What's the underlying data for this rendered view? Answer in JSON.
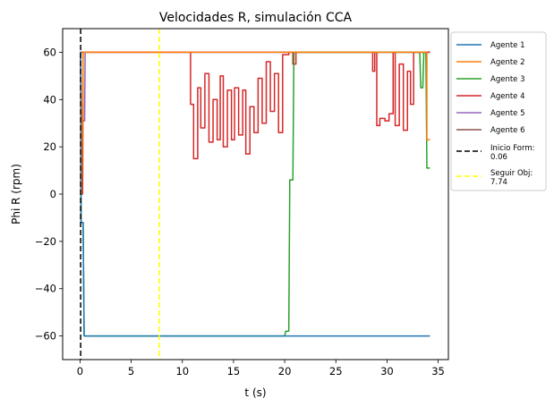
{
  "chart_data": {
    "type": "line",
    "title": "Velocidades R, simulación CCA",
    "xlabel": "t (s)",
    "ylabel": "Phi R (rpm)",
    "xlim": [
      -1.7,
      36.0
    ],
    "ylim": [
      -70,
      70
    ],
    "xticks": [
      0,
      5,
      10,
      15,
      20,
      25,
      30,
      35
    ],
    "yticks": [
      -60,
      -40,
      -20,
      0,
      20,
      40,
      60
    ],
    "xtick_labels": [
      "0",
      "5",
      "10",
      "15",
      "20",
      "25",
      "30",
      "35"
    ],
    "ytick_labels": [
      "−60",
      "−40",
      "−20",
      "0",
      "20",
      "40",
      "60"
    ],
    "grid": false,
    "legend_position": "outside-right",
    "series": [
      {
        "name": "Agente 1",
        "color": "#1f77b4",
        "points": [
          [
            0.0,
            60
          ],
          [
            0.06,
            60
          ],
          [
            0.1,
            -12
          ],
          [
            0.3,
            -12
          ],
          [
            0.4,
            -60
          ],
          [
            34.2,
            -60
          ]
        ]
      },
      {
        "name": "Agente 2",
        "color": "#ff7f0e",
        "points": [
          [
            0.0,
            60
          ],
          [
            0.06,
            60
          ],
          [
            0.15,
            0
          ],
          [
            0.3,
            60
          ],
          [
            33.9,
            60
          ],
          [
            33.9,
            23
          ],
          [
            34.2,
            23
          ]
        ]
      },
      {
        "name": "Agente 3",
        "color": "#2ca02c",
        "points": [
          [
            0.0,
            60
          ],
          [
            0.06,
            60
          ],
          [
            0.1,
            -12
          ],
          [
            0.3,
            -12
          ],
          [
            0.4,
            -60
          ],
          [
            20.0,
            -60
          ],
          [
            20.1,
            -58
          ],
          [
            20.4,
            -58
          ],
          [
            20.5,
            6
          ],
          [
            20.8,
            6
          ],
          [
            20.9,
            60
          ],
          [
            33.2,
            60
          ],
          [
            33.3,
            45
          ],
          [
            33.5,
            45
          ],
          [
            33.6,
            60
          ],
          [
            33.8,
            60
          ],
          [
            33.9,
            11
          ],
          [
            34.2,
            11
          ]
        ]
      },
      {
        "name": "Agente 4",
        "color": "#d62728",
        "points": [
          [
            0.0,
            60
          ],
          [
            0.06,
            60
          ],
          [
            0.1,
            0
          ],
          [
            0.25,
            0
          ],
          [
            0.3,
            60
          ],
          [
            10.8,
            60
          ],
          [
            10.8,
            38
          ],
          [
            11.1,
            38
          ],
          [
            11.1,
            15
          ],
          [
            11.5,
            15
          ],
          [
            11.5,
            45
          ],
          [
            11.8,
            45
          ],
          [
            11.8,
            28
          ],
          [
            12.2,
            28
          ],
          [
            12.2,
            51
          ],
          [
            12.6,
            51
          ],
          [
            12.6,
            22
          ],
          [
            13.0,
            22
          ],
          [
            13.0,
            40
          ],
          [
            13.4,
            40
          ],
          [
            13.4,
            23
          ],
          [
            13.7,
            23
          ],
          [
            13.7,
            50
          ],
          [
            14.0,
            50
          ],
          [
            14.0,
            20
          ],
          [
            14.4,
            20
          ],
          [
            14.4,
            44
          ],
          [
            14.8,
            44
          ],
          [
            14.8,
            23
          ],
          [
            15.1,
            23
          ],
          [
            15.1,
            45
          ],
          [
            15.5,
            45
          ],
          [
            15.5,
            25
          ],
          [
            15.9,
            25
          ],
          [
            15.9,
            44
          ],
          [
            16.2,
            44
          ],
          [
            16.2,
            17
          ],
          [
            16.6,
            17
          ],
          [
            16.6,
            37
          ],
          [
            17.0,
            37
          ],
          [
            17.0,
            26
          ],
          [
            17.4,
            26
          ],
          [
            17.4,
            49
          ],
          [
            17.8,
            49
          ],
          [
            17.8,
            30
          ],
          [
            18.2,
            30
          ],
          [
            18.2,
            56
          ],
          [
            18.6,
            56
          ],
          [
            18.6,
            35
          ],
          [
            19.0,
            35
          ],
          [
            19.0,
            51
          ],
          [
            19.4,
            51
          ],
          [
            19.4,
            26
          ],
          [
            19.8,
            26
          ],
          [
            19.8,
            59
          ],
          [
            20.4,
            59
          ],
          [
            20.4,
            60
          ],
          [
            20.8,
            60
          ],
          [
            20.8,
            55
          ],
          [
            21.1,
            55
          ],
          [
            21.1,
            60
          ],
          [
            28.6,
            60
          ],
          [
            28.6,
            52
          ],
          [
            28.8,
            52
          ],
          [
            28.8,
            60
          ],
          [
            29.0,
            60
          ],
          [
            29.0,
            29
          ],
          [
            29.3,
            29
          ],
          [
            29.3,
            32
          ],
          [
            29.8,
            32
          ],
          [
            29.8,
            31
          ],
          [
            30.2,
            31
          ],
          [
            30.2,
            34
          ],
          [
            30.6,
            34
          ],
          [
            30.6,
            60
          ],
          [
            30.8,
            60
          ],
          [
            30.8,
            29
          ],
          [
            31.2,
            29
          ],
          [
            31.2,
            55
          ],
          [
            31.6,
            55
          ],
          [
            31.6,
            27
          ],
          [
            32.0,
            27
          ],
          [
            32.0,
            52
          ],
          [
            32.3,
            52
          ],
          [
            32.3,
            38
          ],
          [
            32.6,
            38
          ],
          [
            32.6,
            60
          ],
          [
            34.2,
            60
          ]
        ]
      },
      {
        "name": "Agente 5",
        "color": "#9467bd",
        "points": [
          [
            0.0,
            60
          ],
          [
            0.06,
            60
          ],
          [
            0.1,
            8
          ],
          [
            0.2,
            31
          ],
          [
            0.45,
            31
          ],
          [
            0.5,
            60
          ],
          [
            34.2,
            60
          ]
        ]
      },
      {
        "name": "Agente 6",
        "color": "#8c564b",
        "points": [
          [
            0.0,
            60
          ],
          [
            34.2,
            60
          ]
        ]
      }
    ],
    "vlines": [
      {
        "name": "Inicio Form:\n0.06",
        "label_lines": [
          "Inicio Form:",
          "0.06"
        ],
        "x": 0.06,
        "color": "#000000",
        "dash": "dashed"
      },
      {
        "name": "Seguir Obj:\n7.74",
        "label_lines": [
          "Seguir Obj:",
          "7.74"
        ],
        "x": 7.74,
        "color": "#ffff00",
        "dash": "dashed"
      }
    ]
  }
}
